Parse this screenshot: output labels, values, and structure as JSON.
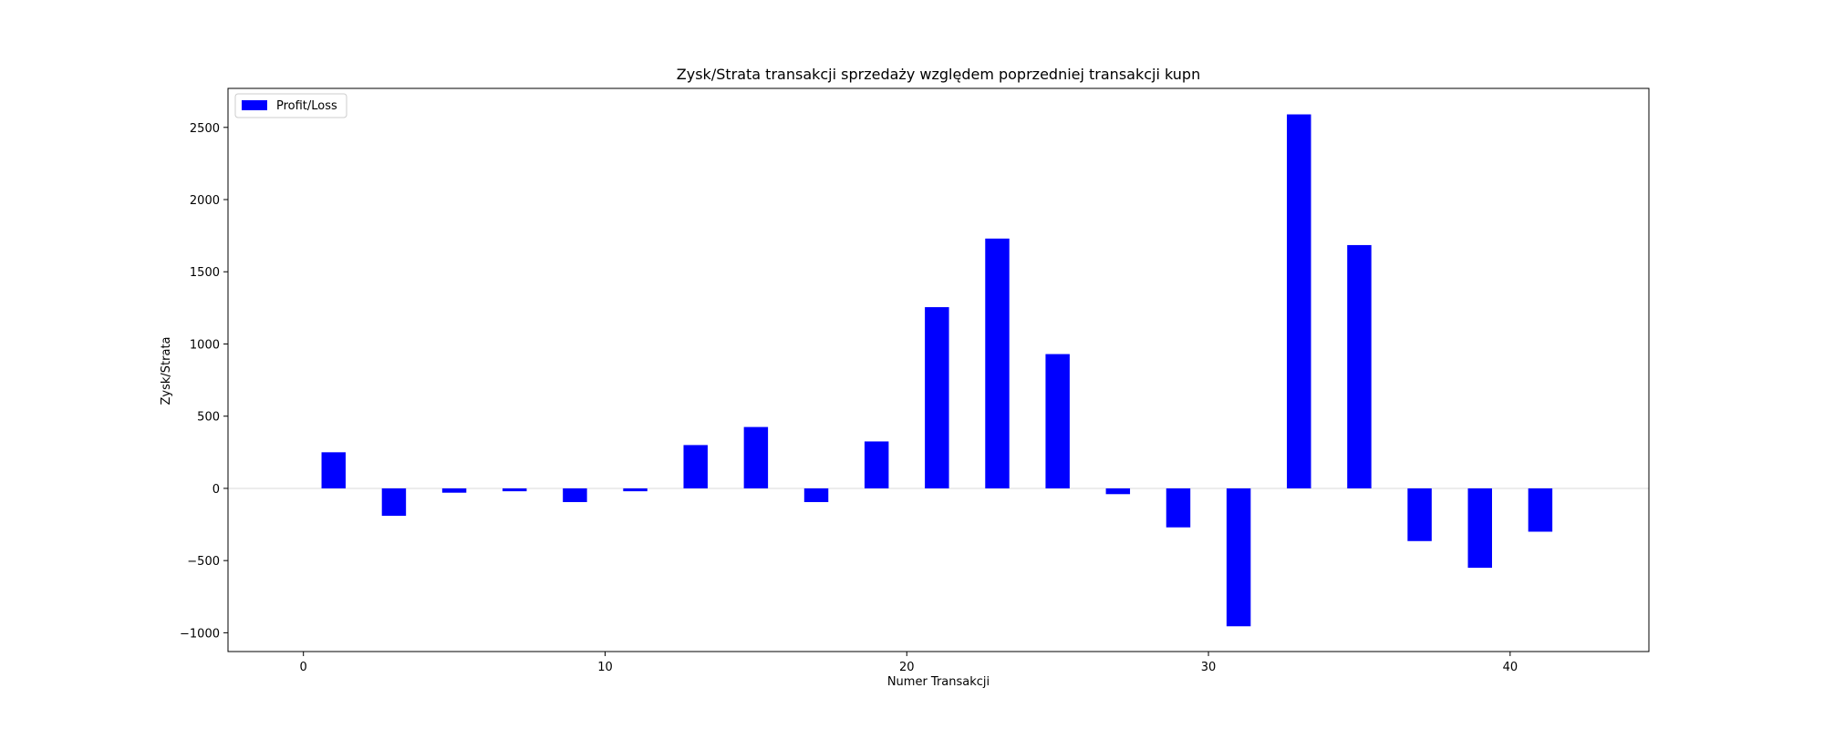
{
  "chart_data": {
    "type": "bar",
    "title": "Zysk/Strata transakcji sprzedaży względem poprzedniej transakcji kupn",
    "xlabel": "Numer Transakcji",
    "ylabel": "Zysk/Strata",
    "xlim": [
      -2.5,
      44.6
    ],
    "ylim": [
      -1130,
      2770
    ],
    "xticks": [
      0,
      10,
      20,
      30,
      40
    ],
    "yticks": [
      -1000,
      -500,
      0,
      500,
      1000,
      1500,
      2000,
      2500
    ],
    "ytick_labels": [
      "−1000",
      "−500",
      "0",
      "500",
      "1000",
      "1500",
      "2000",
      "2500"
    ],
    "bar_width": 0.8,
    "bar_color": "#0000ff",
    "zero_line_color": "#d9d9d9",
    "legend": {
      "entries": [
        "Profit/Loss"
      ],
      "placement": "top-left"
    },
    "series": [
      {
        "name": "Profit/Loss",
        "x": [
          1,
          3,
          5,
          7,
          9,
          11,
          13,
          15,
          17,
          19,
          21,
          23,
          25,
          27,
          29,
          31,
          33,
          35,
          37,
          39,
          41
        ],
        "values": [
          250,
          -190,
          -30,
          -20,
          -95,
          -20,
          300,
          425,
          -95,
          325,
          1255,
          1730,
          930,
          -40,
          -270,
          -955,
          2590,
          1685,
          -365,
          -550,
          -300
        ]
      }
    ]
  }
}
